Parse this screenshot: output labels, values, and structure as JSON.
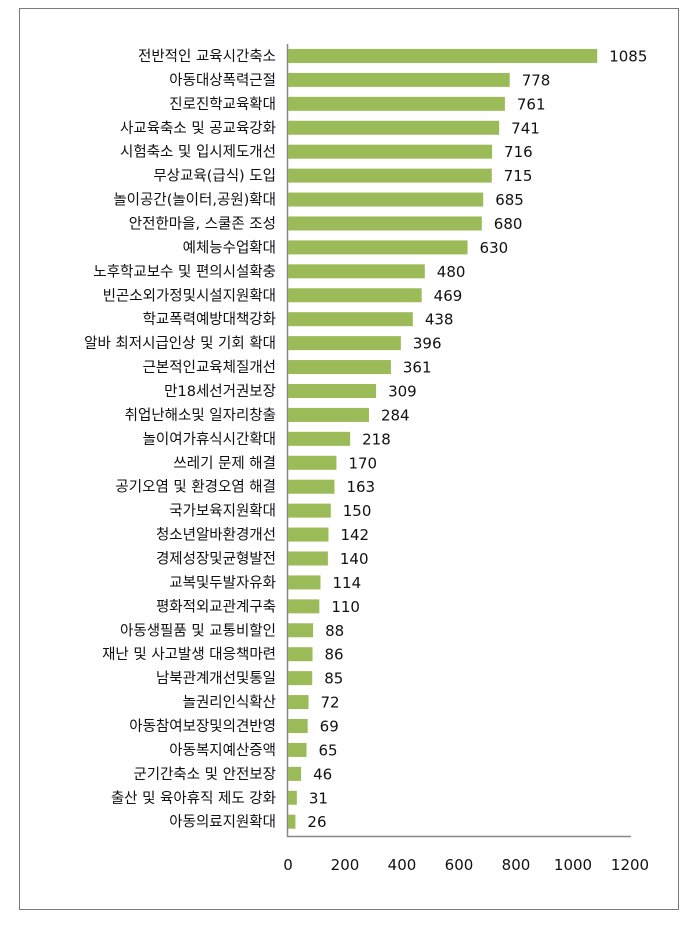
{
  "chart_data": {
    "type": "bar",
    "orientation": "horizontal",
    "bar_color": "#9bbb59",
    "xlim": [
      0,
      1200
    ],
    "xticks": [
      0,
      200,
      400,
      600,
      800,
      1000,
      1200
    ],
    "grid": false,
    "categories": [
      "전반적인 교육시간축소",
      "아동대상폭력근절",
      "진로진학교육확대",
      "사교육축소 및 공교육강화",
      "시험축소 및 입시제도개선",
      "무상교육(급식) 도입",
      "놀이공간(놀이터,공원)확대",
      "안전한마을, 스쿨존 조성",
      "예체능수업확대",
      "노후학교보수 및 편의시설확충",
      "빈곤소외가정및시설지원확대",
      "학교폭력예방대책강화",
      "알바 최저시급인상 및 기회 확대",
      "근본적인교육체질개선",
      "만18세선거권보장",
      "취업난해소및 일자리창출",
      "놀이여가휴식시간확대",
      "쓰레기 문제 해결",
      "공기오염 및 환경오염 해결",
      "국가보육지원확대",
      "청소년알바환경개선",
      "경제성장및균형발전",
      "교복및두발자유화",
      "평화적외교관계구축",
      "아동생필품 및 교통비할인",
      "재난 및 사고발생 대응책마련",
      "남북관계개선및통일",
      "놀권리인식확산",
      "아동참여보장및의견반영",
      "아동복지예산증액",
      "군기간축소 및 안전보장",
      "출산 및 육아휴직 제도 강화",
      "아동의료지원확대"
    ],
    "values": [
      1085,
      778,
      761,
      741,
      716,
      715,
      685,
      680,
      630,
      480,
      469,
      438,
      396,
      361,
      309,
      284,
      218,
      170,
      163,
      150,
      142,
      140,
      114,
      110,
      88,
      86,
      85,
      72,
      69,
      65,
      46,
      31,
      26
    ]
  }
}
